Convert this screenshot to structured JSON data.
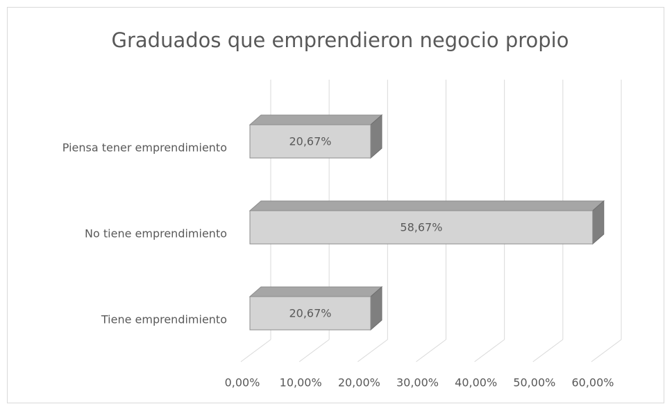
{
  "chart_data": {
    "type": "bar3d_horizontal",
    "title": "Graduados que emprendieron negocio propio",
    "categories": [
      "Piensa tener emprendimiento",
      "No tiene emprendimiento",
      "Tiene emprendimiento"
    ],
    "values": [
      20.67,
      58.67,
      20.67
    ],
    "value_labels": [
      "20,67%",
      "58,67%",
      "20,67%"
    ],
    "color": "#d4d4d4",
    "xlim": [
      0,
      60
    ],
    "xticks": [
      {
        "value": 0,
        "label": "0,00%"
      },
      {
        "value": 10,
        "label": "10,00%"
      },
      {
        "value": 20,
        "label": "20,00%"
      },
      {
        "value": 30,
        "label": "30,00%"
      },
      {
        "value": 40,
        "label": "40,00%"
      },
      {
        "value": 50,
        "label": "50,00%"
      },
      {
        "value": 60,
        "label": "60,00%"
      }
    ],
    "grid": true
  }
}
